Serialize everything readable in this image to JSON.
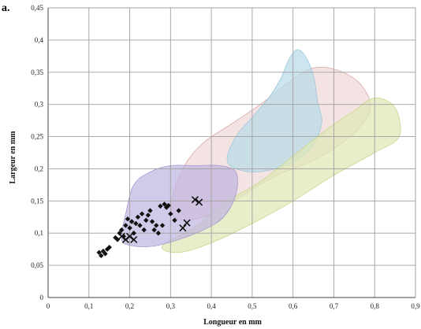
{
  "chart_data": {
    "type": "scatter",
    "panel_label": "a.",
    "xlabel": "Longueur en mm",
    "ylabel": "Largeur en mm",
    "xlim": [
      0,
      0.9
    ],
    "ylim": [
      0,
      0.45
    ],
    "xticks": [
      "0",
      "0,1",
      "0,2",
      "0,3",
      "0,4",
      "0,5",
      "0,6",
      "0,7",
      "0,8",
      "0,9"
    ],
    "yticks": [
      "0",
      "0,05",
      "0,1",
      "0,15",
      "0,2",
      "0,25",
      "0,3",
      "0,35",
      "0,4",
      "0,45"
    ],
    "grid": true,
    "regions": [
      {
        "color": "#f0d8d8",
        "stroke": "#d8a8a8",
        "points": [
          [
            0.3,
            0.14
          ],
          [
            0.33,
            0.2
          ],
          [
            0.38,
            0.24
          ],
          [
            0.45,
            0.27
          ],
          [
            0.52,
            0.3
          ],
          [
            0.58,
            0.33
          ],
          [
            0.64,
            0.355
          ],
          [
            0.7,
            0.355
          ],
          [
            0.76,
            0.335
          ],
          [
            0.79,
            0.3
          ],
          [
            0.77,
            0.27
          ],
          [
            0.72,
            0.24
          ],
          [
            0.64,
            0.21
          ],
          [
            0.56,
            0.19
          ],
          [
            0.48,
            0.16
          ],
          [
            0.4,
            0.13
          ],
          [
            0.33,
            0.12
          ]
        ]
      },
      {
        "color": "#b9dbe8",
        "stroke": "#9cc9dc",
        "points": [
          [
            0.44,
            0.21
          ],
          [
            0.46,
            0.25
          ],
          [
            0.5,
            0.28
          ],
          [
            0.54,
            0.31
          ],
          [
            0.57,
            0.34
          ],
          [
            0.59,
            0.37
          ],
          [
            0.61,
            0.385
          ],
          [
            0.63,
            0.375
          ],
          [
            0.65,
            0.345
          ],
          [
            0.66,
            0.305
          ],
          [
            0.67,
            0.27
          ],
          [
            0.64,
            0.23
          ],
          [
            0.58,
            0.205
          ],
          [
            0.5,
            0.195
          ]
        ]
      },
      {
        "color": "#dfe8b6",
        "stroke": "#c8d78e",
        "points": [
          [
            0.28,
            0.08
          ],
          [
            0.36,
            0.11
          ],
          [
            0.44,
            0.15
          ],
          [
            0.52,
            0.18
          ],
          [
            0.6,
            0.22
          ],
          [
            0.68,
            0.26
          ],
          [
            0.75,
            0.29
          ],
          [
            0.8,
            0.31
          ],
          [
            0.85,
            0.295
          ],
          [
            0.86,
            0.25
          ],
          [
            0.8,
            0.225
          ],
          [
            0.7,
            0.19
          ],
          [
            0.6,
            0.15
          ],
          [
            0.5,
            0.115
          ],
          [
            0.4,
            0.085
          ],
          [
            0.32,
            0.07
          ]
        ]
      },
      {
        "color": "#c0b6e0",
        "stroke": "#a89ad2",
        "points": [
          [
            0.18,
            0.09
          ],
          [
            0.19,
            0.13
          ],
          [
            0.21,
            0.175
          ],
          [
            0.25,
            0.195
          ],
          [
            0.3,
            0.205
          ],
          [
            0.36,
            0.205
          ],
          [
            0.42,
            0.205
          ],
          [
            0.46,
            0.195
          ],
          [
            0.46,
            0.16
          ],
          [
            0.43,
            0.125
          ],
          [
            0.38,
            0.105
          ],
          [
            0.32,
            0.09
          ],
          [
            0.26,
            0.08
          ],
          [
            0.21,
            0.08
          ]
        ]
      }
    ],
    "series": [
      {
        "marker": "diamond",
        "color": "#111111",
        "points": [
          [
            0.125,
            0.07
          ],
          [
            0.13,
            0.065
          ],
          [
            0.135,
            0.072
          ],
          [
            0.14,
            0.068
          ],
          [
            0.145,
            0.075
          ],
          [
            0.15,
            0.078
          ],
          [
            0.165,
            0.093
          ],
          [
            0.17,
            0.09
          ],
          [
            0.175,
            0.1
          ],
          [
            0.18,
            0.105
          ],
          [
            0.185,
            0.095
          ],
          [
            0.19,
            0.112
          ],
          [
            0.195,
            0.122
          ],
          [
            0.2,
            0.108
          ],
          [
            0.205,
            0.118
          ],
          [
            0.21,
            0.1
          ],
          [
            0.215,
            0.115
          ],
          [
            0.22,
            0.125
          ],
          [
            0.225,
            0.112
          ],
          [
            0.23,
            0.13
          ],
          [
            0.235,
            0.105
          ],
          [
            0.24,
            0.12
          ],
          [
            0.245,
            0.128
          ],
          [
            0.25,
            0.135
          ],
          [
            0.255,
            0.118
          ],
          [
            0.26,
            0.105
          ],
          [
            0.265,
            0.112
          ],
          [
            0.27,
            0.1
          ],
          [
            0.275,
            0.142
          ],
          [
            0.28,
            0.112
          ],
          [
            0.285,
            0.145
          ],
          [
            0.29,
            0.14
          ],
          [
            0.295,
            0.143
          ],
          [
            0.3,
            0.13
          ],
          [
            0.31,
            0.12
          ],
          [
            0.32,
            0.135
          ]
        ]
      },
      {
        "marker": "cross",
        "color": "#111111",
        "points": [
          [
            0.18,
            0.095
          ],
          [
            0.19,
            0.09
          ],
          [
            0.2,
            0.095
          ],
          [
            0.21,
            0.09
          ],
          [
            0.33,
            0.108
          ],
          [
            0.34,
            0.116
          ],
          [
            0.36,
            0.152
          ],
          [
            0.37,
            0.148
          ]
        ]
      }
    ]
  }
}
